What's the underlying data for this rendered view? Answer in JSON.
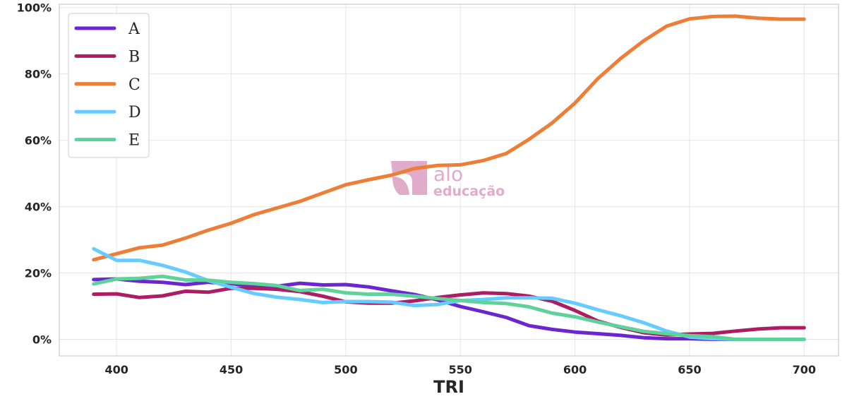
{
  "chart_data": {
    "type": "line",
    "title": "",
    "xlabel": "TRI",
    "ylabel": "",
    "x": [
      390,
      400,
      410,
      420,
      430,
      440,
      450,
      460,
      470,
      480,
      490,
      500,
      510,
      520,
      530,
      540,
      550,
      560,
      570,
      580,
      590,
      600,
      610,
      620,
      630,
      640,
      650,
      660,
      670,
      680,
      690,
      700
    ],
    "xlim": [
      375,
      715
    ],
    "ylim": [
      -5,
      101
    ],
    "xticks": [
      400,
      450,
      500,
      550,
      600,
      650,
      700
    ],
    "yticks": [
      0,
      20,
      40,
      60,
      80,
      100
    ],
    "xtick_labels": [
      "400",
      "450",
      "500",
      "550",
      "600",
      "650",
      "700"
    ],
    "ytick_labels": [
      "0%",
      "20%",
      "40%",
      "60%",
      "80%",
      "100%"
    ],
    "grid": true,
    "legend_position": "top-left",
    "series": [
      {
        "name": "A",
        "color": "#6b26d1",
        "values": [
          18,
          18.2,
          17.5,
          17.2,
          16.5,
          17.2,
          16.8,
          16,
          16,
          16.9,
          16.4,
          16.5,
          15.8,
          14.6,
          13.5,
          11.9,
          9.9,
          8.3,
          6.6,
          4.1,
          3,
          2.2,
          1.7,
          1.2,
          0.5,
          0.2,
          0.2,
          0,
          0,
          0,
          0,
          0
        ]
      },
      {
        "name": "B",
        "color": "#ac1d63",
        "values": [
          13.6,
          13.7,
          12.6,
          13.1,
          14.5,
          14.2,
          15.4,
          15.4,
          15.1,
          14.4,
          13,
          11.3,
          10.9,
          10.9,
          11.6,
          12.6,
          13.4,
          14,
          13.8,
          13,
          11.5,
          8.7,
          5.5,
          3.6,
          2,
          1.3,
          1.6,
          1.8,
          2.5,
          3.1,
          3.5,
          3.5
        ]
      },
      {
        "name": "C",
        "color": "#ee7d35",
        "values": [
          24,
          25.8,
          27.6,
          28.4,
          30.5,
          32.9,
          35,
          37.6,
          39.6,
          41.6,
          44.1,
          46.6,
          48.1,
          49.5,
          51.5,
          52.4,
          52.6,
          53.9,
          56,
          60.3,
          65.2,
          71.2,
          78.6,
          84.7,
          90,
          94.4,
          96.6,
          97.3,
          97.4,
          96.8,
          96.5,
          96.5
        ]
      },
      {
        "name": "D",
        "color": "#66ccff",
        "values": [
          27.3,
          23.8,
          23.8,
          22.3,
          20.3,
          17.7,
          15.7,
          13.8,
          12.7,
          12,
          11.1,
          11.4,
          11.4,
          11.2,
          10.2,
          10.5,
          11.7,
          12,
          12.5,
          12.5,
          12.4,
          10.9,
          8.9,
          7.1,
          5,
          2.5,
          0.7,
          0.2,
          0,
          0,
          0,
          0
        ]
      },
      {
        "name": "E",
        "color": "#5fd29b",
        "values": [
          16.7,
          18.2,
          18.4,
          19,
          17.9,
          17.8,
          17.2,
          16.8,
          16.2,
          14.7,
          15.1,
          14,
          13.6,
          13.6,
          13,
          12.3,
          11.7,
          11.1,
          10.8,
          9.8,
          7.9,
          6.8,
          5.2,
          3.8,
          2.4,
          1.7,
          1.1,
          0.8,
          0,
          0,
          0,
          0
        ]
      }
    ]
  },
  "watermark": {
    "line1": "alo",
    "line2": "educação",
    "color": "#e0a8c8"
  }
}
